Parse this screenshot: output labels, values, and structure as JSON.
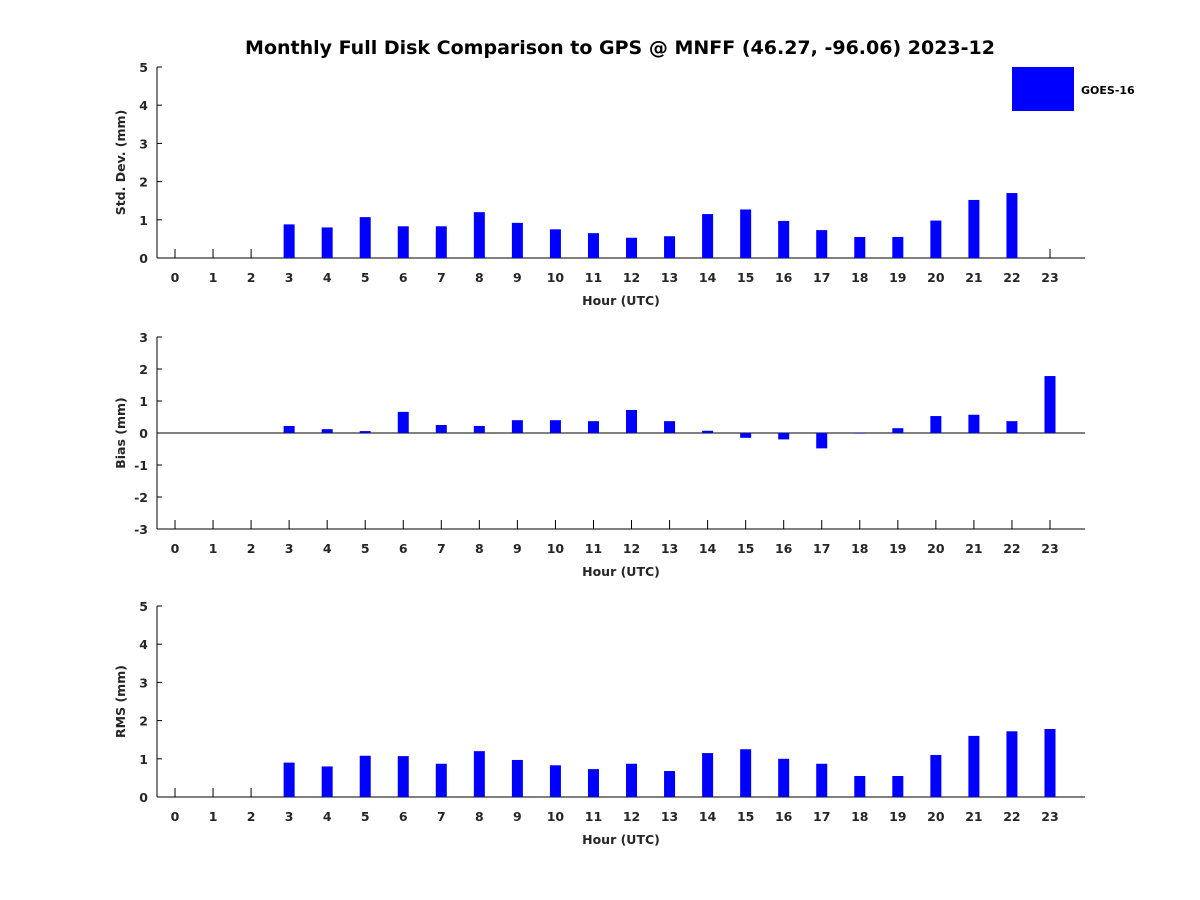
{
  "chart_data": {
    "title": "Monthly Full Disk Comparison to GPS @ MNFF (46.27, -96.06) 2023-12",
    "legend": {
      "placement": "top-right",
      "entries": [
        {
          "name": "GOES-16",
          "color": "#0000ff"
        }
      ]
    },
    "panels": [
      {
        "type": "bar",
        "xlabel": "Hour (UTC)",
        "ylabel": "Std. Dev. (mm)",
        "ylim": [
          0,
          5
        ],
        "yticks": [
          "0",
          "1",
          "2",
          "3",
          "4",
          "5"
        ],
        "categories": [
          "0",
          "1",
          "2",
          "3",
          "4",
          "5",
          "6",
          "7",
          "8",
          "9",
          "10",
          "11",
          "12",
          "13",
          "14",
          "15",
          "16",
          "17",
          "18",
          "19",
          "20",
          "21",
          "22",
          "23"
        ],
        "series": [
          {
            "name": "GOES-16",
            "values": [
              null,
              null,
              null,
              0.88,
              0.8,
              1.07,
              0.83,
              0.83,
              1.2,
              0.92,
              0.75,
              0.65,
              0.53,
              0.57,
              1.15,
              1.27,
              0.97,
              0.73,
              0.55,
              0.55,
              0.98,
              1.52,
              1.7,
              null
            ]
          }
        ]
      },
      {
        "type": "bar",
        "xlabel": "Hour (UTC)",
        "ylabel": "Bias (mm)",
        "ylim": [
          -3,
          3
        ],
        "yticks": [
          "-3",
          "-2",
          "-1",
          "0",
          "1",
          "2",
          "3"
        ],
        "categories": [
          "0",
          "1",
          "2",
          "3",
          "4",
          "5",
          "6",
          "7",
          "8",
          "9",
          "10",
          "11",
          "12",
          "13",
          "14",
          "15",
          "16",
          "17",
          "18",
          "19",
          "20",
          "21",
          "22",
          "23"
        ],
        "series": [
          {
            "name": "GOES-16",
            "values": [
              null,
              null,
              null,
              0.22,
              0.12,
              0.06,
              0.66,
              0.25,
              0.22,
              0.4,
              0.4,
              0.37,
              0.72,
              0.37,
              0.07,
              -0.15,
              -0.2,
              -0.48,
              -0.02,
              0.15,
              0.53,
              0.57,
              0.37,
              1.78
            ]
          }
        ]
      },
      {
        "type": "bar",
        "xlabel": "Hour (UTC)",
        "ylabel": "RMS (mm)",
        "ylim": [
          0,
          5
        ],
        "yticks": [
          "0",
          "1",
          "2",
          "3",
          "4",
          "5"
        ],
        "categories": [
          "0",
          "1",
          "2",
          "3",
          "4",
          "5",
          "6",
          "7",
          "8",
          "9",
          "10",
          "11",
          "12",
          "13",
          "14",
          "15",
          "16",
          "17",
          "18",
          "19",
          "20",
          "21",
          "22",
          "23"
        ],
        "series": [
          {
            "name": "GOES-16",
            "values": [
              null,
              null,
              null,
              0.9,
              0.8,
              1.08,
              1.07,
              0.87,
              1.2,
              0.97,
              0.83,
              0.73,
              0.87,
              0.68,
              1.15,
              1.25,
              1.0,
              0.87,
              0.55,
              0.55,
              1.1,
              1.6,
              1.72,
              1.78
            ]
          }
        ]
      }
    ]
  }
}
